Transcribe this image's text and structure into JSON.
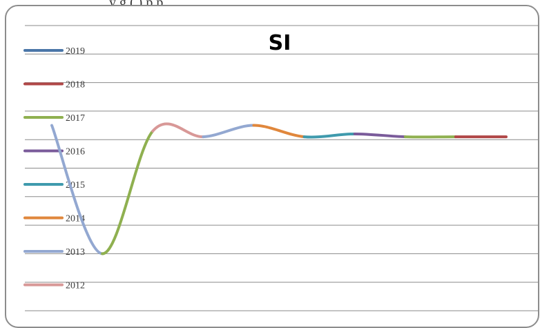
{
  "caption": "y                                          g (  ) p     p",
  "chart_data": {
    "type": "line",
    "title": "SI",
    "xlabel": "",
    "ylabel": "",
    "grid": true,
    "legend": "left",
    "categories": [
      "",
      "",
      "",
      "",
      "",
      "",
      "",
      "",
      "",
      ""
    ],
    "values": [
      -3.5,
      -8.0,
      -3.7,
      -3.9,
      -3.5,
      -3.9,
      -3.8,
      -3.9,
      -3.9,
      -3.9
    ],
    "ylim": [
      -10,
      0
    ],
    "segment_series": [
      "2013",
      "2017",
      "2012",
      "2013",
      "2014",
      "2015",
      "2016",
      "2017",
      "2018"
    ],
    "series": [
      {
        "name": "2019",
        "color": "#4a76a8"
      },
      {
        "name": "2018",
        "color": "#b04747"
      },
      {
        "name": "2017",
        "color": "#8fb050"
      },
      {
        "name": "2016",
        "color": "#7a5b9a"
      },
      {
        "name": "2015",
        "color": "#3f9aad"
      },
      {
        "name": "2014",
        "color": "#e0873c"
      },
      {
        "name": "2013",
        "color": "#93a8d1"
      },
      {
        "name": "2012",
        "color": "#d89897"
      }
    ]
  }
}
